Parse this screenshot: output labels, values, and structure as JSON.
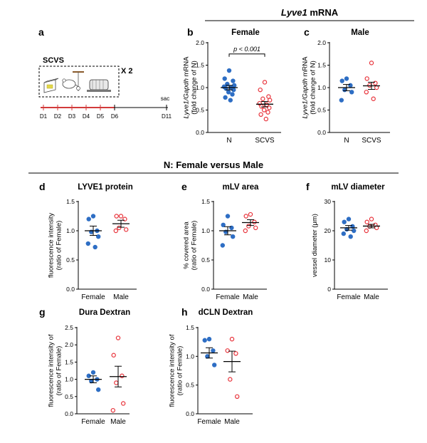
{
  "header_top": {
    "gene": "Lyve1",
    "rest": " mRNA"
  },
  "header_mid": "N: Female versus Male",
  "panel_a": {
    "label": "a",
    "protocol": "SCVS",
    "repeat": "X 2",
    "sac": "sac",
    "days": [
      "D1",
      "D2",
      "D3",
      "D4",
      "D5",
      "D6",
      "D11"
    ],
    "colors": {
      "stress": "#d23b3b",
      "line": "#000000"
    }
  },
  "colors": {
    "blue": "#2e6ec4",
    "red": "#e8333b"
  },
  "chart_data": [
    {
      "id": "b",
      "type": "scatter",
      "title": "Female",
      "ylabel_lines": [
        [
          "Lyve1/Gapdh",
          " mRNA"
        ],
        [
          "(fold change of N)"
        ]
      ],
      "categories": [
        "N",
        "SCVS"
      ],
      "ylim": [
        0,
        2.0
      ],
      "ticks": [
        0.0,
        0.5,
        1.0,
        1.5,
        2.0
      ],
      "ticklabels": [
        "0.0",
        "0.5",
        "1.0",
        "1.5",
        "2.0"
      ],
      "annotation": {
        "text": "p < 0.001"
      },
      "series": [
        {
          "values": [
            1.38,
            1.2,
            1.15,
            1.08,
            1.05,
            1.02,
            1.0,
            0.98,
            0.95,
            0.9,
            0.85,
            0.78,
            0.72
          ],
          "mean": 1.0,
          "sem": 0.05,
          "filled": true,
          "color": "blue"
        },
        {
          "values": [
            1.12,
            0.95,
            0.8,
            0.75,
            0.72,
            0.65,
            0.62,
            0.58,
            0.55,
            0.5,
            0.45,
            0.4,
            0.3
          ],
          "mean": 0.63,
          "sem": 0.06,
          "filled": false,
          "color": "red"
        }
      ]
    },
    {
      "id": "c",
      "type": "scatter",
      "title": "Male",
      "ylabel_lines": [
        [
          "Lyve1/Gapdh",
          " mRNA"
        ],
        [
          "(fold change of N)"
        ]
      ],
      "categories": [
        "N",
        "SCVS"
      ],
      "ylim": [
        0,
        2.0
      ],
      "ticks": [
        0.0,
        0.5,
        1.0,
        1.5,
        2.0
      ],
      "ticklabels": [
        "0.0",
        "0.5",
        "1.0",
        "1.5",
        "2.0"
      ],
      "series": [
        {
          "values": [
            1.2,
            1.15,
            1.05,
            0.95,
            0.9,
            0.72
          ],
          "mean": 1.0,
          "sem": 0.07,
          "filled": true,
          "color": "blue"
        },
        {
          "values": [
            1.55,
            1.2,
            1.1,
            1.05,
            1.0,
            0.9,
            0.75
          ],
          "mean": 1.04,
          "sem": 0.08,
          "filled": false,
          "color": "red"
        }
      ]
    },
    {
      "id": "d",
      "type": "scatter",
      "title": "LYVE1 protein",
      "ylabel_lines": [
        [
          "fluorescence intensity"
        ],
        [
          "(ratio of Female)"
        ]
      ],
      "categories": [
        "Female",
        "Male"
      ],
      "ylim": [
        0,
        1.5
      ],
      "ticks": [
        0.0,
        0.5,
        1.0,
        1.5
      ],
      "ticklabels": [
        "0.0",
        "0.5",
        "1.0",
        "1.5"
      ],
      "series": [
        {
          "values": [
            1.25,
            1.2,
            1.0,
            0.98,
            0.9,
            0.78,
            0.72
          ],
          "mean": 1.0,
          "sem": 0.08,
          "filled": true,
          "color": "blue"
        },
        {
          "values": [
            1.25,
            1.25,
            1.2,
            1.05,
            1.02,
            1.0
          ],
          "mean": 1.12,
          "sem": 0.06,
          "filled": false,
          "color": "red"
        }
      ]
    },
    {
      "id": "e",
      "type": "scatter",
      "title": "mLV area",
      "ylabel_lines": [
        [
          "% covered area"
        ],
        [
          "(ratio of Female)"
        ]
      ],
      "categories": [
        "Female",
        "Male"
      ],
      "ylim": [
        0,
        1.5
      ],
      "ticks": [
        0.0,
        0.5,
        1.0,
        1.5
      ],
      "ticklabels": [
        "0.0",
        "0.5",
        "1.0",
        "1.5"
      ],
      "series": [
        {
          "values": [
            1.25,
            1.1,
            1.05,
            0.98,
            0.9,
            0.75
          ],
          "mean": 1.0,
          "sem": 0.07,
          "filled": true,
          "color": "blue"
        },
        {
          "values": [
            1.28,
            1.25,
            1.15,
            1.08,
            1.05,
            1.0
          ],
          "mean": 1.14,
          "sem": 0.05,
          "filled": false,
          "color": "red"
        }
      ]
    },
    {
      "id": "f",
      "type": "scatter",
      "title": "mLV diameter",
      "ylabel_lines": [
        [
          "vessel diameter (μm)"
        ]
      ],
      "categories": [
        "Female",
        "Male"
      ],
      "ylim": [
        0,
        30
      ],
      "ticks": [
        0,
        10,
        20,
        30
      ],
      "ticklabels": [
        "0",
        "10",
        "20",
        "30"
      ],
      "series": [
        {
          "values": [
            24,
            23,
            21.5,
            20.5,
            20,
            19,
            18
          ],
          "mean": 21.0,
          "sem": 0.8,
          "filled": true,
          "color": "blue"
        },
        {
          "values": [
            24,
            23,
            22,
            21.5,
            21,
            20
          ],
          "mean": 21.6,
          "sem": 0.6,
          "filled": false,
          "color": "red"
        }
      ]
    },
    {
      "id": "g",
      "type": "scatter",
      "title": "Dura Dextran",
      "ylabel_lines": [
        [
          "fluorescence intensity of"
        ],
        [
          "(ratio of Female)"
        ]
      ],
      "categories": [
        "Female",
        "Male"
      ],
      "ylim": [
        0,
        2.5
      ],
      "ticks": [
        0.0,
        0.5,
        1.0,
        1.5,
        2.0,
        2.5
      ],
      "ticklabels": [
        "0.0",
        "0.5",
        "1.0",
        "1.5",
        "2.0",
        "2.5"
      ],
      "series": [
        {
          "values": [
            1.2,
            1.1,
            1.0,
            0.95,
            0.7
          ],
          "mean": 1.0,
          "sem": 0.1,
          "filled": true,
          "color": "blue"
        },
        {
          "values": [
            2.2,
            1.7,
            1.1,
            0.9,
            0.3,
            0.1
          ],
          "mean": 1.08,
          "sem": 0.3,
          "filled": false,
          "color": "red"
        }
      ]
    },
    {
      "id": "h",
      "type": "scatter",
      "title": "dCLN Dextran",
      "ylabel_lines": [
        [
          "fluorescence intensity of"
        ],
        [
          "(ratio of Female)"
        ]
      ],
      "categories": [
        "Female",
        "Male"
      ],
      "ylim": [
        0,
        1.5
      ],
      "ticks": [
        0.0,
        0.5,
        1.0,
        1.5
      ],
      "ticklabels": [
        "0.0",
        "0.5",
        "1.0",
        "1.5"
      ],
      "series": [
        {
          "values": [
            1.3,
            1.28,
            1.1,
            1.0,
            0.85
          ],
          "mean": 1.06,
          "sem": 0.09,
          "filled": true,
          "color": "blue"
        },
        {
          "values": [
            1.3,
            1.1,
            1.05,
            0.6,
            0.3
          ],
          "mean": 0.91,
          "sem": 0.18,
          "filled": false,
          "color": "red"
        }
      ]
    }
  ]
}
